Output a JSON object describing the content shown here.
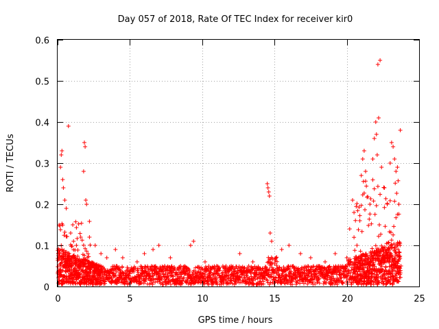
{
  "chart_data": {
    "type": "scatter",
    "title": "Day 057 of 2018, Rate Of TEC Index for receiver kir0",
    "xlabel": "GPS time / hours",
    "ylabel": "ROTI / TECUs",
    "xlim": [
      0,
      25
    ],
    "ylim": [
      0,
      0.6
    ],
    "xticks": [
      0,
      5,
      10,
      15,
      20,
      25
    ],
    "xtick_labels": [
      "0",
      "5",
      "10",
      "15",
      "20",
      "25"
    ],
    "yticks": [
      0,
      0.1,
      0.2,
      0.3,
      0.4,
      0.5,
      0.6
    ],
    "ytick_labels": [
      "0",
      "0.1",
      "0.2",
      "0.3",
      "0.4",
      "0.5",
      "0.6"
    ],
    "grid": true,
    "marker": "+",
    "color": "#ff0000",
    "series": [
      {
        "name": "ROTI",
        "points": [
          [
            0.1,
            0.15
          ],
          [
            0.2,
            0.29
          ],
          [
            0.25,
            0.32
          ],
          [
            0.3,
            0.33
          ],
          [
            0.35,
            0.26
          ],
          [
            0.4,
            0.24
          ],
          [
            0.5,
            0.21
          ],
          [
            0.6,
            0.19
          ],
          [
            0.75,
            0.39
          ],
          [
            0.9,
            0.13
          ],
          [
            1.1,
            0.11
          ],
          [
            1.3,
            0.1
          ],
          [
            1.6,
            0.12
          ],
          [
            1.8,
            0.28
          ],
          [
            1.85,
            0.35
          ],
          [
            1.9,
            0.34
          ],
          [
            1.95,
            0.21
          ],
          [
            2.0,
            0.2
          ],
          [
            2.2,
            0.12
          ],
          [
            2.6,
            0.1
          ],
          [
            3.0,
            0.08
          ],
          [
            3.4,
            0.07
          ],
          [
            4.0,
            0.09
          ],
          [
            4.5,
            0.07
          ],
          [
            5.5,
            0.06
          ],
          [
            6.0,
            0.08
          ],
          [
            6.6,
            0.09
          ],
          [
            7.0,
            0.1
          ],
          [
            7.8,
            0.07
          ],
          [
            8.5,
            0.05
          ],
          [
            9.2,
            0.1
          ],
          [
            9.4,
            0.11
          ],
          [
            10.2,
            0.06
          ],
          [
            11.0,
            0.05
          ],
          [
            12.0,
            0.05
          ],
          [
            12.6,
            0.08
          ],
          [
            13.5,
            0.06
          ],
          [
            14.5,
            0.25
          ],
          [
            14.55,
            0.24
          ],
          [
            14.6,
            0.23
          ],
          [
            14.65,
            0.22
          ],
          [
            14.7,
            0.13
          ],
          [
            14.8,
            0.11
          ],
          [
            15.5,
            0.09
          ],
          [
            16.0,
            0.1
          ],
          [
            16.8,
            0.08
          ],
          [
            17.5,
            0.07
          ],
          [
            18.5,
            0.06
          ],
          [
            19.2,
            0.08
          ],
          [
            20.0,
            0.07
          ],
          [
            20.2,
            0.14
          ],
          [
            20.4,
            0.21
          ],
          [
            20.5,
            0.18
          ],
          [
            20.7,
            0.1
          ],
          [
            20.9,
            0.16
          ],
          [
            21.0,
            0.27
          ],
          [
            21.1,
            0.31
          ],
          [
            21.2,
            0.33
          ],
          [
            21.3,
            0.28
          ],
          [
            21.6,
            0.2
          ],
          [
            21.8,
            0.31
          ],
          [
            21.9,
            0.36
          ],
          [
            22.0,
            0.4
          ],
          [
            22.05,
            0.37
          ],
          [
            22.1,
            0.32
          ],
          [
            22.15,
            0.54
          ],
          [
            22.2,
            0.41
          ],
          [
            22.3,
            0.55
          ],
          [
            22.4,
            0.29
          ],
          [
            22.6,
            0.24
          ],
          [
            22.8,
            0.2
          ],
          [
            23.0,
            0.3
          ],
          [
            23.1,
            0.35
          ],
          [
            23.2,
            0.34
          ],
          [
            23.3,
            0.31
          ],
          [
            23.4,
            0.28
          ],
          [
            23.5,
            0.29
          ],
          [
            23.6,
            0.2
          ],
          [
            23.7,
            0.38
          ],
          [
            23.75,
            0.05
          ]
        ]
      }
    ]
  }
}
